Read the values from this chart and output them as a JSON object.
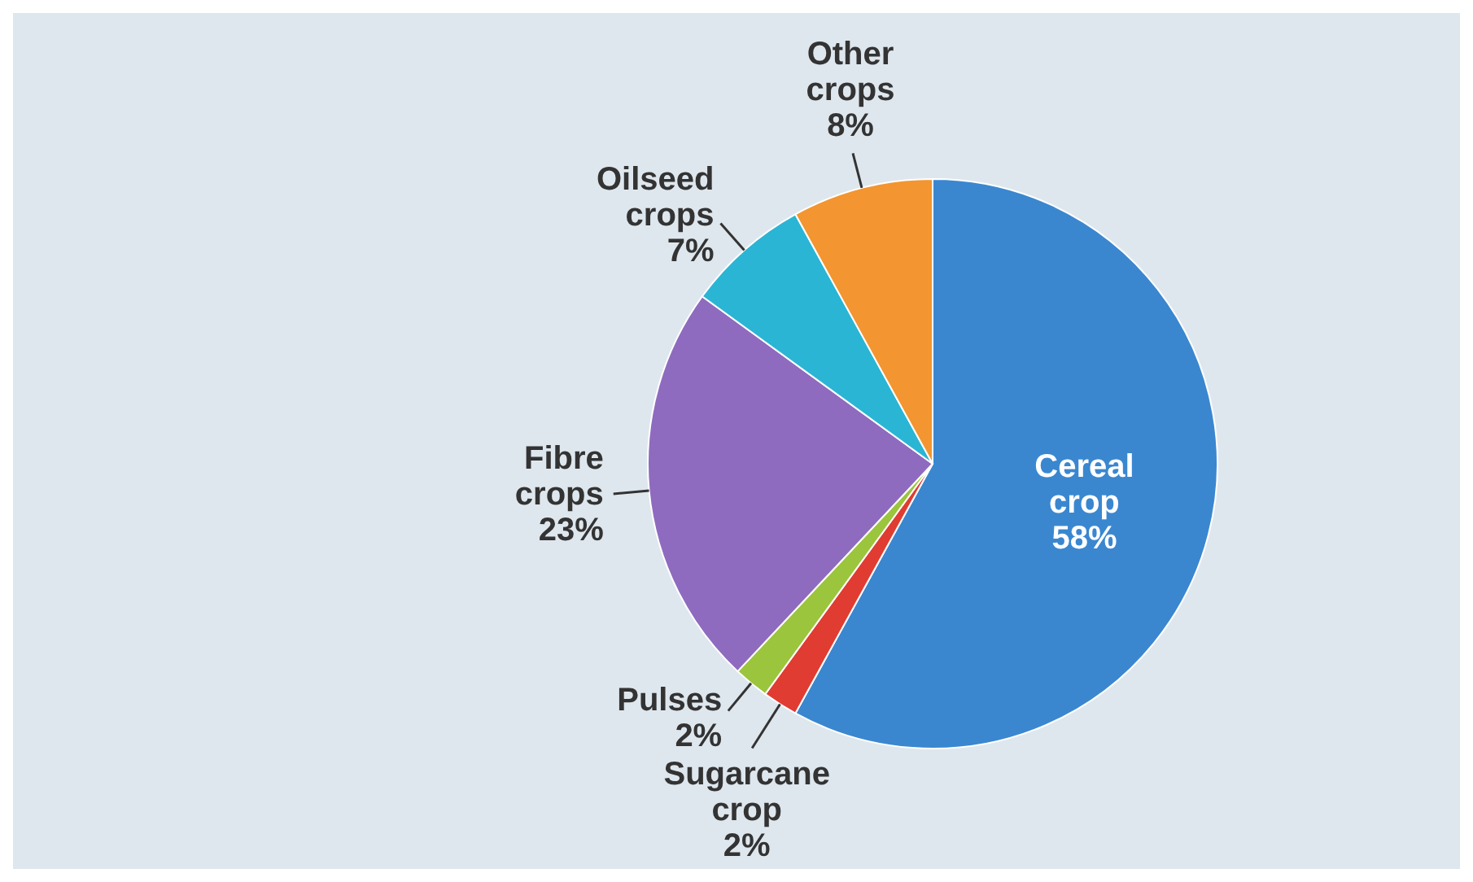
{
  "chart_data": {
    "type": "pie",
    "categories": [
      "Cereal crop",
      "Sugarcane crop",
      "Pulses",
      "Fibre crops",
      "Oilseed crops",
      "Other crops"
    ],
    "values": [
      58,
      2,
      2,
      23,
      7,
      8
    ],
    "colors": [
      "#3a87d0",
      "#e03c31",
      "#9bc53d",
      "#8e6bbf",
      "#2bb5d4",
      "#f39530"
    ],
    "value_labels": [
      "58%",
      "2%",
      "2%",
      "23%",
      "7%",
      "8%"
    ]
  }
}
